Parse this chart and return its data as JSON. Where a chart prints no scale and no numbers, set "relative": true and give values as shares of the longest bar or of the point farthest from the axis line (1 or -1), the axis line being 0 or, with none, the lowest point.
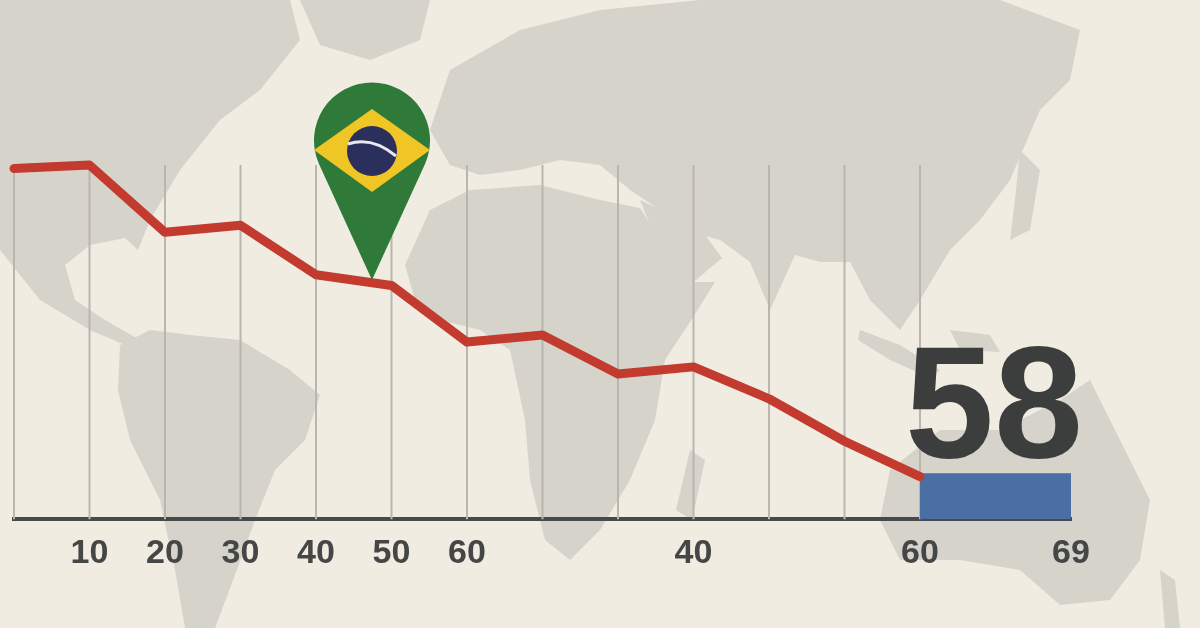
{
  "chart_data": {
    "type": "line",
    "relative": true,
    "tick_labels": "x",
    "grid": "x",
    "marker": "none",
    "categories": [
      null,
      "10",
      "20",
      "30",
      "40",
      "50",
      "60",
      null,
      null,
      "40",
      null,
      null,
      "60",
      null,
      "69"
    ],
    "series": [
      {
        "color": "#c23b2e",
        "values": [
          0.99,
          1,
          0.81,
          0.83,
          0.69,
          0.66,
          0.5,
          0.52,
          0.41,
          0.43,
          0.34,
          0.22,
          0.12,
          null,
          null
        ]
      },
      {
        "type": "bar",
        "color": "#4a6fa5",
        "values": [
          null,
          null,
          null,
          null,
          null,
          null,
          null,
          null,
          null,
          null,
          null,
          null,
          null,
          0.13,
          null
        ]
      }
    ],
    "annotations": [
      "58"
    ]
  }
}
